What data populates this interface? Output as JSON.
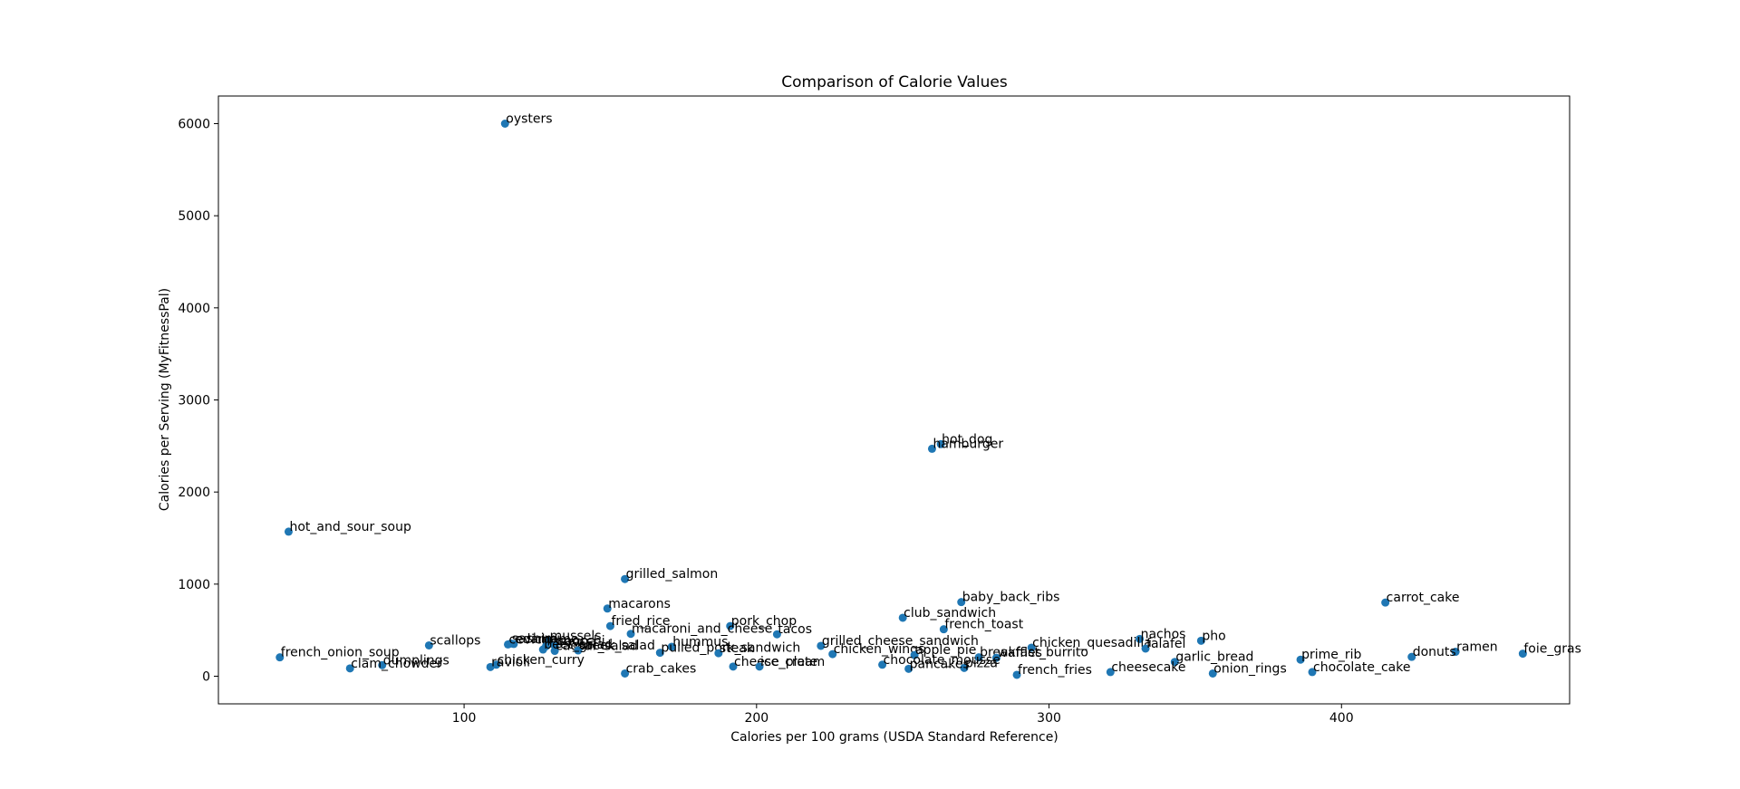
{
  "chart_data": {
    "type": "scatter",
    "title": "Comparison of Calorie Values",
    "xlabel": "Calories per 100 grams (USDA Standard Reference)",
    "ylabel": "Calories per Serving (MyFitnessPal)",
    "xlim": [
      16,
      478
    ],
    "ylim": [
      -300,
      6300
    ],
    "xticks": [
      100,
      200,
      300,
      400
    ],
    "yticks": [
      0,
      1000,
      2000,
      3000,
      4000,
      5000,
      6000
    ],
    "grid": false,
    "marker_color": "#1f77b4",
    "points": [
      {
        "label": "oysters",
        "x": 114,
        "y": 6000
      },
      {
        "label": "hot_dog",
        "x": 263,
        "y": 2520
      },
      {
        "label": "hamburger",
        "x": 260,
        "y": 2470
      },
      {
        "label": "hot_and_sour_soup",
        "x": 40,
        "y": 1570
      },
      {
        "label": "grilled_salmon",
        "x": 155,
        "y": 1055
      },
      {
        "label": "baby_back_ribs",
        "x": 270,
        "y": 805
      },
      {
        "label": "carrot_cake",
        "x": 415,
        "y": 800
      },
      {
        "label": "macarons",
        "x": 149,
        "y": 735
      },
      {
        "label": "club_sandwich",
        "x": 250,
        "y": 635
      },
      {
        "label": "fried_rice",
        "x": 150,
        "y": 545
      },
      {
        "label": "pork_chop",
        "x": 191,
        "y": 545
      },
      {
        "label": "french_toast",
        "x": 264,
        "y": 510
      },
      {
        "label": "macaroni_and_cheese",
        "x": 157,
        "y": 460
      },
      {
        "label": "tacos",
        "x": 207,
        "y": 455
      },
      {
        "label": "nachos",
        "x": 331,
        "y": 405
      },
      {
        "label": "pho",
        "x": 352,
        "y": 385
      },
      {
        "label": "mussels",
        "x": 129,
        "y": 385
      },
      {
        "label": "sashimi",
        "x": 116,
        "y": 355
      },
      {
        "label": "edamame",
        "x": 117,
        "y": 350
      },
      {
        "label": "ceviche",
        "x": 115,
        "y": 345
      },
      {
        "label": "scallops",
        "x": 88,
        "y": 335
      },
      {
        "label": "grilled_cheese_sandwich",
        "x": 222,
        "y": 330
      },
      {
        "label": "lasagna",
        "x": 128,
        "y": 325
      },
      {
        "label": "gnocchi",
        "x": 131,
        "y": 330
      },
      {
        "label": "hummus",
        "x": 171,
        "y": 320
      },
      {
        "label": "chicken_quesadilla",
        "x": 294,
        "y": 310
      },
      {
        "label": "falafel",
        "x": 333,
        "y": 300
      },
      {
        "label": "caesar_salad",
        "x": 131,
        "y": 275
      },
      {
        "label": "greek_salad",
        "x": 139,
        "y": 280
      },
      {
        "label": "beet_salad",
        "x": 127,
        "y": 290
      },
      {
        "label": "ramen",
        "x": 439,
        "y": 265
      },
      {
        "label": "pulled_pork_sandwich",
        "x": 167,
        "y": 255
      },
      {
        "label": "steak",
        "x": 187,
        "y": 250
      },
      {
        "label": "foie_gras",
        "x": 462,
        "y": 245
      },
      {
        "label": "chicken_wings",
        "x": 226,
        "y": 240
      },
      {
        "label": "apple_pie",
        "x": 254,
        "y": 230
      },
      {
        "label": "breakfast_burrito",
        "x": 276,
        "y": 205
      },
      {
        "label": "donuts",
        "x": 424,
        "y": 210
      },
      {
        "label": "waffles",
        "x": 282,
        "y": 200
      },
      {
        "label": "french_onion_soup",
        "x": 37,
        "y": 205
      },
      {
        "label": "prime_rib",
        "x": 386,
        "y": 180
      },
      {
        "label": "garlic_bread",
        "x": 343,
        "y": 155
      },
      {
        "label": "chicken_curry",
        "x": 111,
        "y": 125
      },
      {
        "label": "dumplings",
        "x": 72,
        "y": 120
      },
      {
        "label": "cheese_plate",
        "x": 192,
        "y": 105
      },
      {
        "label": "ice_cream",
        "x": 201,
        "y": 105
      },
      {
        "label": "chocolate_mousse",
        "x": 243,
        "y": 125
      },
      {
        "label": "ravioli",
        "x": 109,
        "y": 100
      },
      {
        "label": "clam_chowder",
        "x": 61,
        "y": 85
      },
      {
        "label": "pizza",
        "x": 271,
        "y": 90
      },
      {
        "label": "pancakes",
        "x": 252,
        "y": 80
      },
      {
        "label": "crab_cakes",
        "x": 155,
        "y": 30
      },
      {
        "label": "french_fries",
        "x": 289,
        "y": 15
      },
      {
        "label": "cheesecake",
        "x": 321,
        "y": 45
      },
      {
        "label": "onion_rings",
        "x": 356,
        "y": 30
      },
      {
        "label": "chocolate_cake",
        "x": 390,
        "y": 45
      }
    ]
  }
}
